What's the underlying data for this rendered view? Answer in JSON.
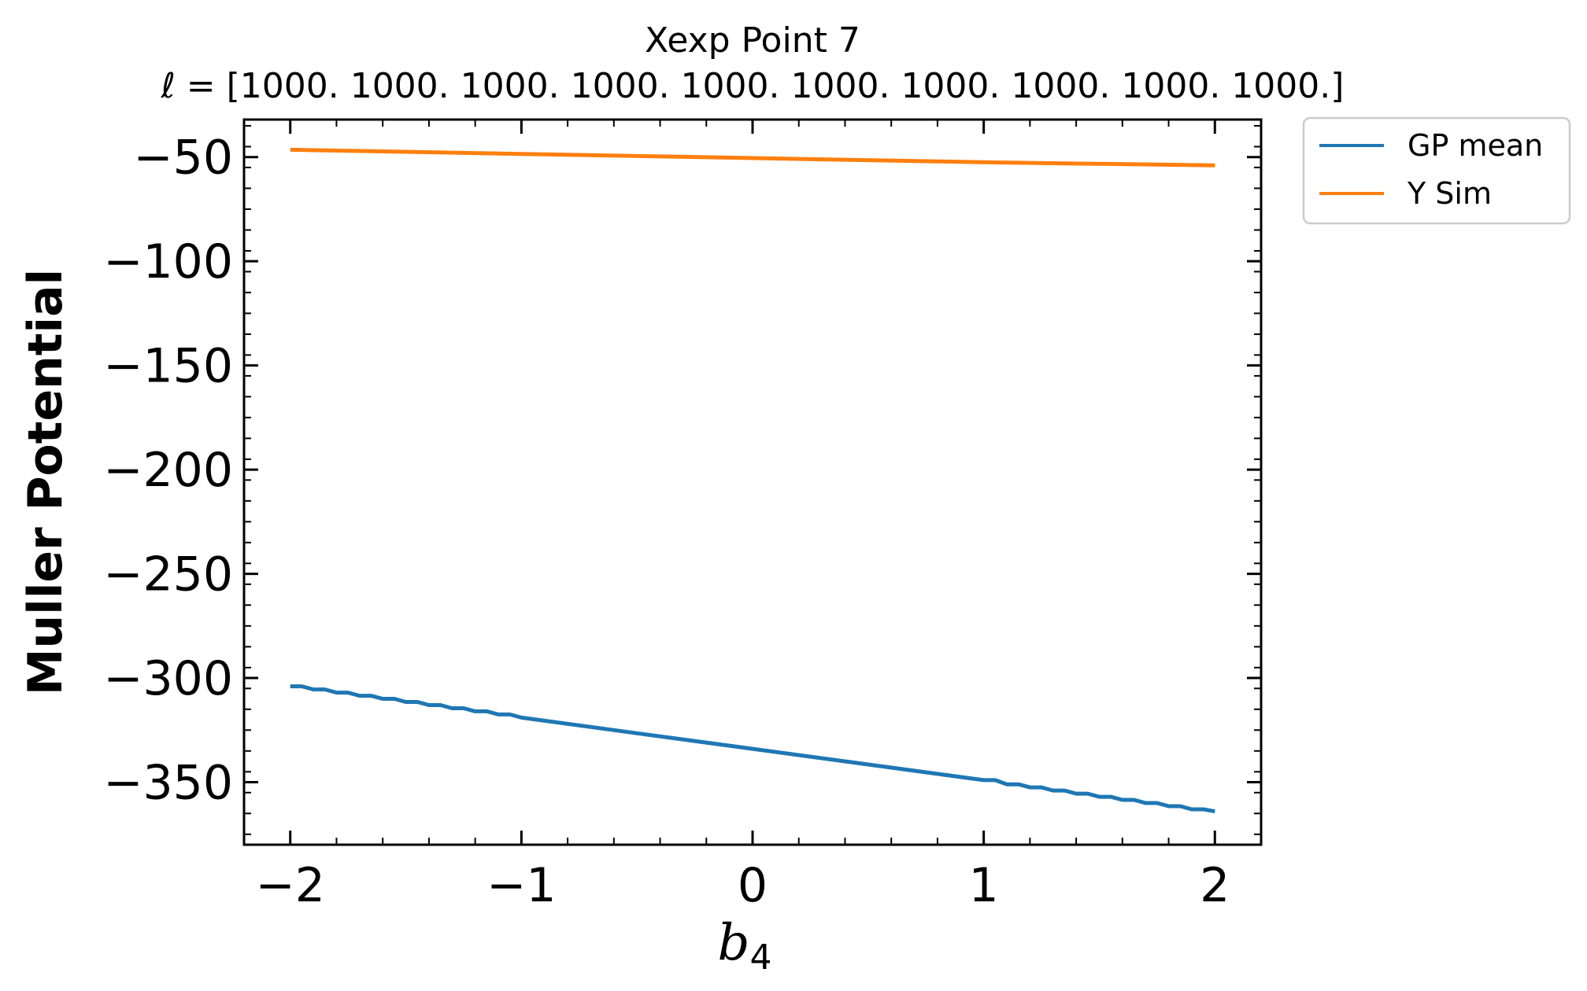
{
  "chart_data": {
    "type": "line",
    "title": "Xexp Point 7",
    "subtitle": "ℓ = [1000. 1000. 1000. 1000. 1000. 1000. 1000. 1000. 1000. 1000.]",
    "xlabel_base": "b",
    "xlabel_sub": "4",
    "ylabel": "Muller Potential",
    "xlim": [
      -2.2,
      2.2
    ],
    "ylim": [
      -380,
      -32
    ],
    "xticks": [
      -2,
      -1,
      0,
      1,
      2
    ],
    "xtick_labels": [
      "−2",
      "−1",
      "0",
      "1",
      "2"
    ],
    "yticks": [
      -50,
      -100,
      -150,
      -200,
      -250,
      -300,
      -350
    ],
    "ytick_labels": [
      "−50",
      "−100",
      "−150",
      "−200",
      "−250",
      "−300",
      "−350"
    ],
    "grid": false,
    "legend_position": "outside-top-right",
    "series": [
      {
        "name": "GP mean",
        "color": "#1f77b4",
        "x": [
          -2.0,
          -1.95,
          -1.9,
          -1.85,
          -1.8,
          -1.75,
          -1.7,
          -1.65,
          -1.6,
          -1.55,
          -1.5,
          -1.45,
          -1.4,
          -1.35,
          -1.3,
          -1.25,
          -1.2,
          -1.15,
          -1.1,
          -1.05,
          -1.0,
          -0.5,
          0.0,
          0.5,
          1.0,
          1.05,
          1.1,
          1.15,
          1.2,
          1.25,
          1.3,
          1.35,
          1.4,
          1.45,
          1.5,
          1.55,
          1.6,
          1.65,
          1.7,
          1.75,
          1.8,
          1.85,
          1.9,
          1.95,
          2.0
        ],
        "y": [
          -304,
          -304,
          -305.5,
          -305.5,
          -307,
          -307,
          -308.5,
          -308.5,
          -310,
          -310,
          -311.5,
          -311.5,
          -313,
          -313,
          -314.5,
          -314.5,
          -316,
          -316,
          -317.5,
          -317.5,
          -319,
          -326.5,
          -334,
          -341.5,
          -349,
          -349,
          -351,
          -351,
          -352.5,
          -352.5,
          -354,
          -354,
          -355.5,
          -355.5,
          -357,
          -357,
          -358.5,
          -358.5,
          -360,
          -360,
          -361.5,
          -361.5,
          -363,
          -363,
          -364
        ]
      },
      {
        "name": "Y Sim",
        "color": "#ff7f0e",
        "x": [
          -2.0,
          -1.0,
          0.0,
          1.0,
          2.0
        ],
        "y": [
          -46.5,
          -48.5,
          -50.5,
          -52.5,
          -54.0
        ]
      }
    ]
  }
}
